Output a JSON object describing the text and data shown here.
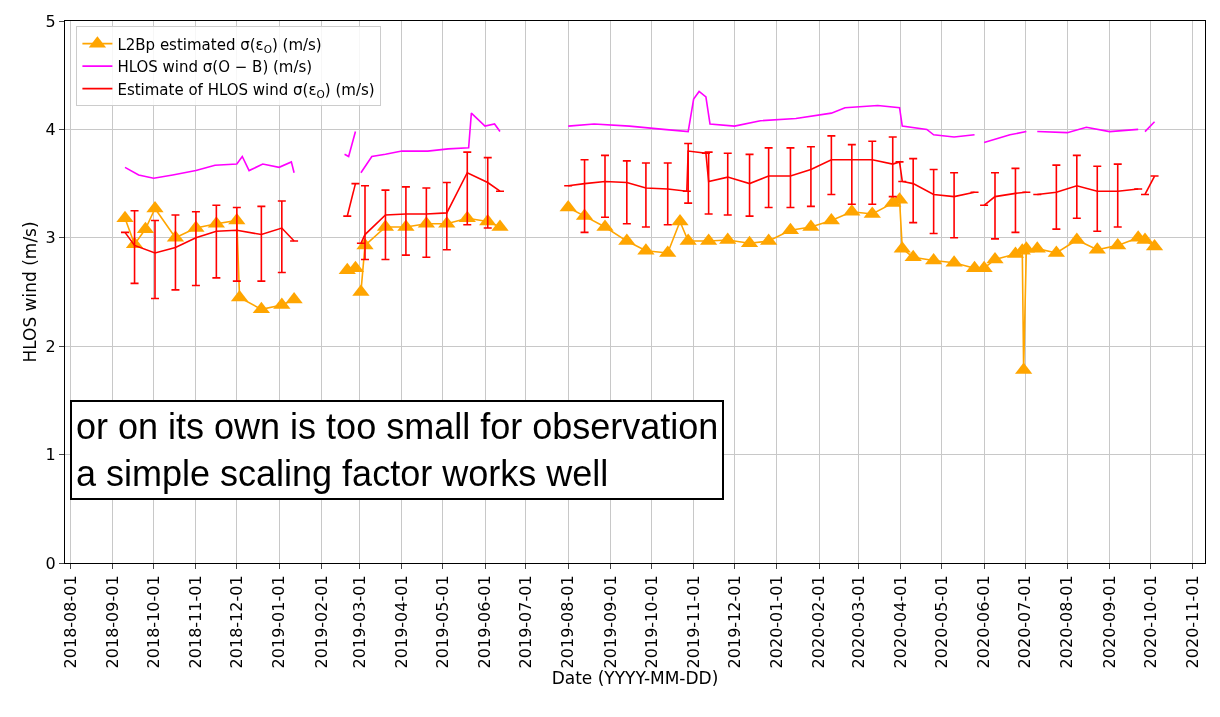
{
  "chart_data": {
    "type": "line",
    "xlabel": "Date (YYYY-MM-DD)",
    "ylabel": "HLOS wind (m/s)",
    "xlim": [
      "2018-07-28",
      "2020-11-10"
    ],
    "ylim": [
      0,
      5
    ],
    "yticks": [
      0,
      1,
      2,
      3,
      4,
      5
    ],
    "xticks": [
      "2018-08-01",
      "2018-09-01",
      "2018-10-01",
      "2018-11-01",
      "2018-12-01",
      "2019-01-01",
      "2019-02-01",
      "2019-03-01",
      "2019-04-01",
      "2019-05-01",
      "2019-06-01",
      "2019-07-01",
      "2019-08-01",
      "2019-09-01",
      "2019-10-01",
      "2019-11-01",
      "2019-12-01",
      "2020-01-01",
      "2020-02-01",
      "2020-03-01",
      "2020-04-01",
      "2020-05-01",
      "2020-06-01",
      "2020-07-01",
      "2020-08-01",
      "2020-09-01",
      "2020-10-01",
      "2020-11-01"
    ],
    "grid": true,
    "legend": "top left",
    "line_style": "solid",
    "annotations": [
      "or on its own is too small for observation",
      "a simple scaling factor works well"
    ],
    "series": [
      {
        "name": "L2Bp estimated σ(ε$_{O}$) (m/s)",
        "color": "#ffa500",
        "marker": "triangle",
        "x": [
          "2018-09-10",
          "2018-09-17",
          "2018-09-25",
          "2018-10-02",
          "2018-10-17",
          "2018-11-01",
          "2018-11-16",
          "2018-12-01",
          "2018-12-03",
          "2018-12-19",
          "2019-01-03",
          "2019-01-12",
          "2019-02-01",
          "2019-02-20",
          "2019-02-26",
          "2019-02-28",
          "2019-03-02",
          "2019-03-05",
          "2019-03-20",
          "2019-04-04",
          "2019-04-19",
          "2019-05-04",
          "2019-05-19",
          "2019-06-03",
          "2019-06-12",
          "2019-07-01",
          "2019-08-01",
          "2019-08-13",
          "2019-08-28",
          "2019-09-13",
          "2019-09-27",
          "2019-10-13",
          "2019-10-22",
          "2019-10-28",
          "2019-11-12",
          "2019-11-26",
          "2019-12-12",
          "2019-12-26",
          "2020-01-11",
          "2020-01-26",
          "2020-02-10",
          "2020-02-25",
          "2020-03-11",
          "2020-03-26",
          "2020-03-31",
          "2020-04-02",
          "2020-04-10",
          "2020-04-25",
          "2020-05-10",
          "2020-05-25",
          "2020-05-28",
          "2020-06-01",
          "2020-06-09",
          "2020-06-24",
          "2020-06-29",
          "2020-06-30",
          "2020-07-02",
          "2020-07-05",
          "2020-07-10",
          "2020-07-24",
          "2020-08-08",
          "2020-08-23",
          "2020-09-07",
          "2020-09-22",
          "2020-09-25",
          "2020-09-27",
          "2020-10-04"
        ],
        "values": [
          3.18,
          2.94,
          3.08,
          3.27,
          3.0,
          3.09,
          3.13,
          3.16,
          2.45,
          2.34,
          2.38,
          2.43,
          null,
          2.7,
          2.72,
          null,
          2.5,
          2.93,
          3.1,
          3.1,
          3.13,
          3.13,
          3.18,
          3.15,
          3.1,
          null,
          3.28,
          3.2,
          3.1,
          2.97,
          2.88,
          2.86,
          3.15,
          2.97,
          2.97,
          2.98,
          2.95,
          2.97,
          3.07,
          3.1,
          3.16,
          3.24,
          3.22,
          3.32,
          3.35,
          2.9,
          2.82,
          2.79,
          2.77,
          2.72,
          null,
          2.72,
          2.8,
          2.85,
          2.88,
          1.78,
          2.9,
          null,
          2.9,
          2.86,
          2.98,
          2.89,
          2.93,
          3.0,
          null,
          2.98,
          2.92
        ]
      },
      {
        "name": "HLOS wind σ(O − B) (m/s)",
        "color": "#ff00ff",
        "x": [
          "2018-09-10",
          "2018-09-20",
          "2018-10-01",
          "2018-10-15",
          "2018-11-01",
          "2018-11-15",
          "2018-12-01",
          "2018-12-05",
          "2018-12-10",
          "2018-12-20",
          "2019-01-01",
          "2019-01-10",
          "2019-01-12",
          "2019-02-01",
          "2019-02-18",
          "2019-02-21",
          "2019-02-26",
          "2019-02-28",
          "2019-03-02",
          "2019-03-10",
          "2019-03-20",
          "2019-04-01",
          "2019-04-20",
          "2019-05-05",
          "2019-05-20",
          "2019-05-22",
          "2019-06-01",
          "2019-06-08",
          "2019-06-12",
          "2019-07-01",
          "2019-08-01",
          "2019-08-20",
          "2019-09-15",
          "2019-10-10",
          "2019-10-28",
          "2019-11-01",
          "2019-11-05",
          "2019-11-10",
          "2019-11-13",
          "2019-12-01",
          "2019-12-20",
          "2020-01-15",
          "2020-02-10",
          "2020-02-20",
          "2020-03-15",
          "2020-03-31",
          "2020-04-02",
          "2020-04-20",
          "2020-04-25",
          "2020-05-10",
          "2020-05-25",
          "2020-05-28",
          "2020-06-01",
          "2020-06-20",
          "2020-07-02",
          "2020-07-05",
          "2020-07-10",
          "2020-08-01",
          "2020-08-15",
          "2020-09-01",
          "2020-09-22",
          "2020-09-25",
          "2020-09-27",
          "2020-10-04"
        ],
        "values": [
          3.65,
          3.58,
          3.55,
          3.58,
          3.62,
          3.67,
          3.68,
          3.75,
          3.62,
          3.68,
          3.65,
          3.7,
          3.6,
          null,
          3.77,
          3.75,
          3.98,
          null,
          3.6,
          3.75,
          3.77,
          3.8,
          3.8,
          3.82,
          3.83,
          4.15,
          4.03,
          4.05,
          3.98,
          null,
          4.03,
          4.05,
          4.03,
          4.0,
          3.98,
          4.28,
          4.35,
          4.3,
          4.05,
          4.03,
          4.08,
          4.1,
          4.15,
          4.2,
          4.22,
          4.2,
          4.03,
          4.0,
          3.95,
          3.93,
          3.95,
          null,
          3.88,
          3.95,
          3.98,
          null,
          3.98,
          3.97,
          4.02,
          3.98,
          4.0,
          null,
          3.98,
          4.07
        ]
      },
      {
        "name": "Estimate of HLOS wind σ(ε$_{O}$) (m/s)",
        "color": "#ff0000",
        "x": [
          "2018-09-10",
          "2018-09-17",
          "2018-10-02",
          "2018-10-17",
          "2018-11-01",
          "2018-11-16",
          "2018-12-01",
          "2018-12-19",
          "2019-01-03",
          "2019-01-12",
          "2019-02-01",
          "2019-02-20",
          "2019-02-26",
          "2019-02-28",
          "2019-03-02",
          "2019-03-05",
          "2019-03-20",
          "2019-04-04",
          "2019-04-19",
          "2019-05-04",
          "2019-05-19",
          "2019-06-03",
          "2019-06-12",
          "2019-07-01",
          "2019-08-01",
          "2019-08-13",
          "2019-08-28",
          "2019-09-13",
          "2019-09-27",
          "2019-10-13",
          "2019-10-27",
          "2019-10-28",
          "2019-11-10",
          "2019-11-12",
          "2019-11-26",
          "2019-12-12",
          "2019-12-26",
          "2020-01-11",
          "2020-01-26",
          "2020-02-10",
          "2020-02-25",
          "2020-03-11",
          "2020-03-26",
          "2020-03-31",
          "2020-04-02",
          "2020-04-10",
          "2020-04-25",
          "2020-05-10",
          "2020-05-25",
          "2020-05-28",
          "2020-06-01",
          "2020-06-09",
          "2020-06-24",
          "2020-07-02",
          "2020-07-05",
          "2020-07-10",
          "2020-07-24",
          "2020-08-08",
          "2020-08-23",
          "2020-09-07",
          "2020-09-22",
          "2020-09-25",
          "2020-09-27",
          "2020-10-04"
        ],
        "values": [
          3.05,
          2.93,
          2.86,
          2.91,
          3.0,
          3.06,
          3.07,
          3.03,
          3.09,
          2.97,
          null,
          3.2,
          3.5,
          null,
          2.95,
          3.03,
          3.21,
          3.22,
          3.22,
          3.23,
          3.6,
          3.51,
          3.43,
          null,
          3.48,
          3.5,
          3.52,
          3.51,
          3.46,
          3.45,
          3.43,
          3.8,
          3.78,
          3.52,
          3.56,
          3.5,
          3.57,
          3.57,
          3.63,
          3.72,
          3.72,
          3.72,
          3.68,
          3.7,
          3.52,
          3.5,
          3.4,
          3.38,
          3.42,
          null,
          3.3,
          3.38,
          3.41,
          3.42,
          null,
          3.4,
          3.42,
          3.48,
          3.43,
          3.43,
          3.45,
          null,
          3.4,
          3.57
        ],
        "errors": [
          null,
          [
            2.58,
            3.25
          ],
          [
            2.44,
            3.16
          ],
          [
            2.52,
            3.21
          ],
          [
            2.56,
            3.24
          ],
          [
            2.63,
            3.3
          ],
          [
            2.6,
            3.28
          ],
          [
            2.6,
            3.29
          ],
          [
            2.68,
            3.34
          ],
          null,
          null,
          null,
          null,
          null,
          null,
          [
            2.8,
            3.48
          ],
          [
            2.8,
            3.44
          ],
          [
            2.84,
            3.47
          ],
          [
            2.82,
            3.46
          ],
          [
            2.89,
            3.51
          ],
          [
            3.12,
            3.79
          ],
          [
            3.09,
            3.74
          ],
          null,
          null,
          null,
          [
            3.05,
            3.72
          ],
          [
            3.19,
            3.76
          ],
          [
            3.13,
            3.71
          ],
          [
            3.1,
            3.69
          ],
          [
            3.12,
            3.69
          ],
          null,
          [
            3.32,
            3.87
          ],
          null,
          [
            3.22,
            3.79
          ],
          [
            3.21,
            3.78
          ],
          [
            3.2,
            3.77
          ],
          [
            3.28,
            3.83
          ],
          [
            3.28,
            3.83
          ],
          [
            3.29,
            3.84
          ],
          [
            3.4,
            3.94
          ],
          [
            3.31,
            3.86
          ],
          [
            3.31,
            3.89
          ],
          [
            3.38,
            3.93
          ],
          null,
          null,
          [
            3.14,
            3.73
          ],
          [
            3.04,
            3.63
          ],
          [
            3.0,
            3.6
          ],
          null,
          null,
          null,
          [
            2.99,
            3.6
          ],
          [
            3.05,
            3.64
          ],
          null,
          null,
          null,
          [
            3.08,
            3.67
          ],
          [
            3.18,
            3.76
          ],
          [
            3.06,
            3.66
          ],
          [
            3.1,
            3.68
          ],
          null,
          null,
          null,
          null
        ]
      }
    ]
  }
}
